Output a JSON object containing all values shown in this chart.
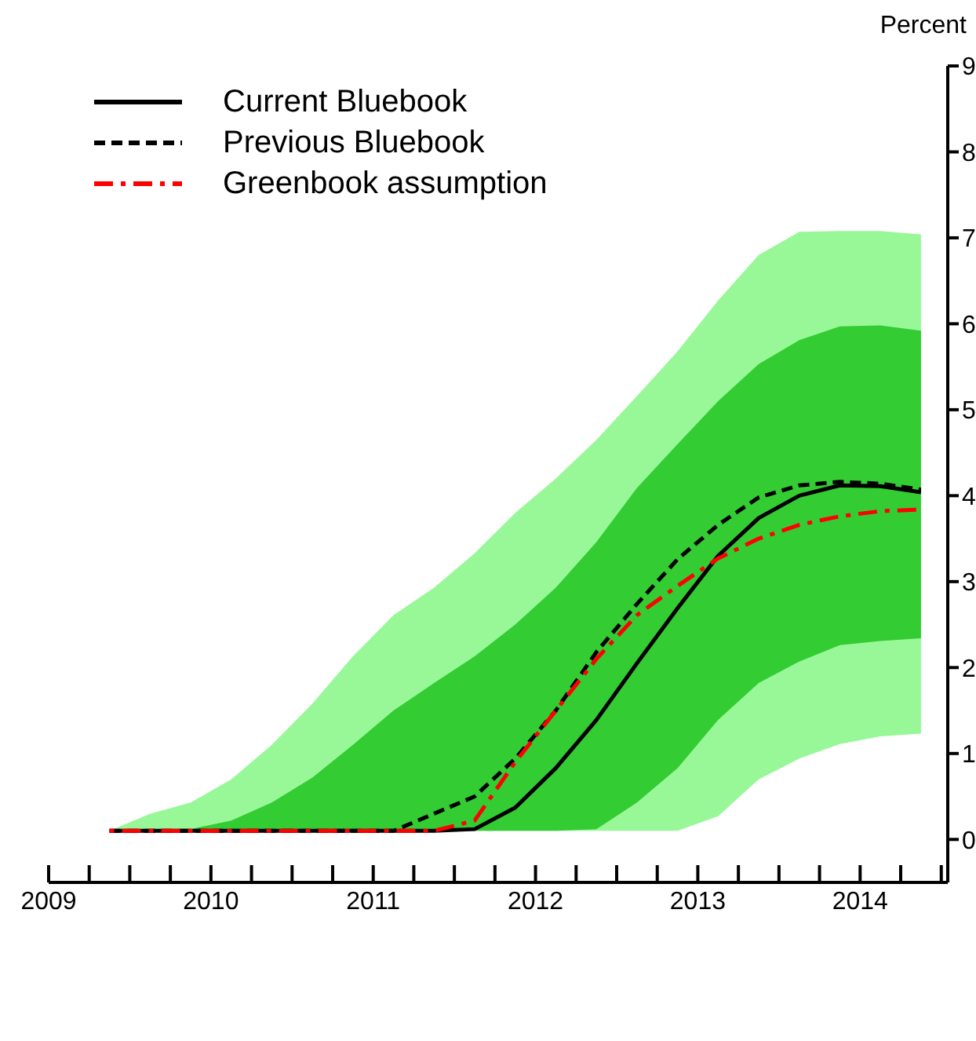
{
  "chart_data": {
    "type": "line",
    "ylabel": "Percent",
    "x": [
      2009.375,
      2009.625,
      2009.875,
      2010.125,
      2010.375,
      2010.625,
      2010.875,
      2011.125,
      2011.375,
      2011.625,
      2011.875,
      2012.125,
      2012.375,
      2012.625,
      2012.875,
      2013.125,
      2013.375,
      2013.625,
      2013.875,
      2014.125,
      2014.375
    ],
    "xlim": [
      2009,
      2014.54
    ],
    "xticks": [
      2009,
      {
        "value": 2009.25,
        "label": null
      },
      {
        "value": 2009.5,
        "label": null
      },
      {
        "value": 2009.75,
        "label": null
      },
      2010,
      {
        "value": 2010.25,
        "label": null
      },
      {
        "value": 2010.5,
        "label": null
      },
      {
        "value": 2010.75,
        "label": null
      },
      2011,
      {
        "value": 2011.25,
        "label": null
      },
      {
        "value": 2011.5,
        "label": null
      },
      {
        "value": 2011.75,
        "label": null
      },
      2012,
      {
        "value": 2012.25,
        "label": null
      },
      {
        "value": 2012.5,
        "label": null
      },
      {
        "value": 2012.75,
        "label": null
      },
      2013,
      {
        "value": 2013.25,
        "label": null
      },
      {
        "value": 2013.5,
        "label": null
      },
      {
        "value": 2013.75,
        "label": null
      },
      2014,
      {
        "value": 2014.25,
        "label": null
      },
      {
        "value": 2014.5,
        "label": null
      }
    ],
    "ylim": [
      -0.5,
      9
    ],
    "yticks": [
      0,
      1,
      2,
      3,
      4,
      5,
      6,
      7,
      8,
      9
    ],
    "grid": false,
    "legend": "top left",
    "series": [
      {
        "type": "area",
        "color": "#98f898",
        "values": [
          null,
          null,
          null,
          null,
          null,
          null,
          null,
          null,
          null,
          null,
          null,
          null,
          null,
          null,
          null,
          null,
          null,
          null,
          null,
          null,
          null
        ],
        "lower": [
          0.1,
          0.1,
          0.1,
          0.1,
          0.1,
          0.1,
          0.1,
          0.1,
          0.1,
          0.1,
          0.1,
          0.1,
          0.1,
          0.1,
          0.1,
          0.27,
          0.7,
          0.94,
          1.11,
          1.2,
          1.23
        ],
        "upper": [
          0.1,
          0.3,
          0.43,
          0.7,
          1.1,
          1.58,
          2.13,
          2.61,
          2.93,
          3.33,
          3.8,
          4.2,
          4.65,
          5.16,
          5.68,
          6.27,
          6.8,
          7.07,
          7.08,
          7.08,
          7.04
        ]
      },
      {
        "type": "area",
        "color": "#33cc33",
        "values": [
          null,
          null,
          null,
          null,
          null,
          null,
          null,
          null,
          null,
          null,
          null,
          null,
          null,
          null,
          null,
          null,
          null,
          null,
          null,
          null,
          null
        ],
        "lower": [
          0.1,
          0.1,
          0.1,
          0.1,
          0.1,
          0.1,
          0.1,
          0.1,
          0.1,
          0.1,
          0.1,
          0.1,
          0.12,
          0.43,
          0.83,
          1.39,
          1.82,
          2.07,
          2.26,
          2.31,
          2.34
        ],
        "upper": [
          0.1,
          0.1,
          0.12,
          0.22,
          0.43,
          0.72,
          1.1,
          1.5,
          1.82,
          2.13,
          2.5,
          2.93,
          3.46,
          4.09,
          4.6,
          5.1,
          5.53,
          5.81,
          5.97,
          5.98,
          5.92
        ]
      },
      {
        "name": "Current Bluebook",
        "color": "#000000",
        "line_style": "solid",
        "values": [
          0.1,
          0.1,
          0.1,
          0.1,
          0.1,
          0.1,
          0.1,
          0.1,
          0.1,
          0.12,
          0.37,
          0.83,
          1.39,
          2.05,
          2.69,
          3.3,
          3.74,
          4.0,
          4.12,
          4.11,
          4.04
        ]
      },
      {
        "name": "Previous Bluebook",
        "color": "#000000",
        "line_style": "dashed",
        "values": [
          0.1,
          0.1,
          0.1,
          0.1,
          0.1,
          0.1,
          0.1,
          0.1,
          0.3,
          0.5,
          0.94,
          1.5,
          2.18,
          2.74,
          3.26,
          3.66,
          3.98,
          4.12,
          4.16,
          4.14,
          4.07
        ]
      },
      {
        "name": "Greenbook assumption",
        "color": "#ff0000",
        "line_style": "dashdot",
        "values": [
          0.1,
          0.1,
          0.1,
          0.1,
          0.1,
          0.1,
          0.1,
          0.1,
          0.1,
          0.22,
          0.9,
          1.5,
          2.1,
          2.61,
          2.95,
          3.27,
          3.5,
          3.66,
          3.76,
          3.82,
          3.84
        ]
      }
    ]
  }
}
